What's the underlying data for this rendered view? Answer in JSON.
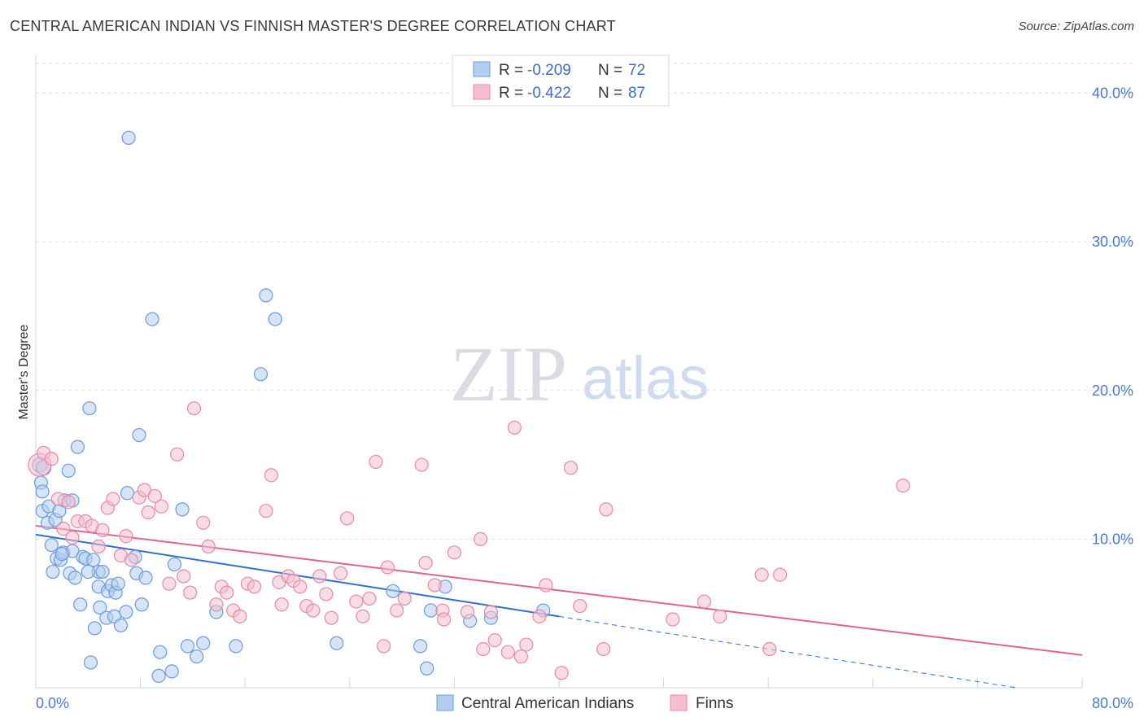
{
  "header": {
    "title": "CENTRAL AMERICAN INDIAN VS FINNISH MASTER'S DEGREE CORRELATION CHART",
    "source": "Source: ZipAtlas.com"
  },
  "colors": {
    "blue": "#6b9bdc",
    "blue_fill": "#b3cdf1",
    "blue_line": "#2f6fcf",
    "pink": "#e68aa8",
    "pink_fill": "#f5bfd0",
    "pink_line": "#e0628e",
    "grid": "#dde2ea",
    "tick": "#4a7cc9"
  },
  "chart_data": {
    "type": "scatter",
    "title": "CENTRAL AMERICAN INDIAN VS FINNISH MASTER'S DEGREE CORRELATION CHART",
    "xlabel": "",
    "ylabel": "Master's Degree",
    "xlim": [
      0,
      80
    ],
    "ylim": [
      0,
      42
    ],
    "x_ticks_labels": [
      "0.0%",
      "80.0%"
    ],
    "y_ticks": [
      10,
      20,
      30,
      40
    ],
    "y_tick_labels": [
      "10.0%",
      "20.0%",
      "30.0%",
      "40.0%"
    ],
    "grid": true,
    "legend_position": "top-center",
    "watermark": "ZIPatlas",
    "legend": {
      "r_label": "R =",
      "n_label": "N =",
      "entries": [
        {
          "r": "-0.209",
          "n": "72"
        },
        {
          "r": "-0.422",
          "n": "87"
        }
      ]
    },
    "series": [
      {
        "name": "Central American Indians",
        "trend": {
          "x0": 0,
          "y0": 10.3,
          "x1": 40,
          "y1": 4.8,
          "dashed_to_x": 75,
          "dashed_y_end": 0.0
        },
        "points": [
          [
            0.4,
            13.8
          ],
          [
            0.5,
            13.2
          ],
          [
            0.5,
            11.9
          ],
          [
            0.9,
            11.1
          ],
          [
            1.0,
            12.2
          ],
          [
            1.2,
            9.6
          ],
          [
            1.3,
            7.8
          ],
          [
            1.5,
            11.3
          ],
          [
            1.6,
            8.7
          ],
          [
            1.8,
            11.9
          ],
          [
            1.9,
            8.6
          ],
          [
            2.1,
            9.1
          ],
          [
            2.2,
            12.6
          ],
          [
            2.5,
            14.6
          ],
          [
            2.6,
            7.7
          ],
          [
            2.8,
            9.2
          ],
          [
            2.8,
            12.6
          ],
          [
            3.0,
            7.4
          ],
          [
            3.2,
            16.2
          ],
          [
            3.4,
            5.6
          ],
          [
            3.6,
            8.8
          ],
          [
            3.8,
            8.7
          ],
          [
            4.1,
            18.8
          ],
          [
            4.2,
            1.7
          ],
          [
            4.4,
            8.6
          ],
          [
            4.5,
            4.0
          ],
          [
            4.8,
            7.8
          ],
          [
            4.8,
            6.8
          ],
          [
            4.9,
            5.4
          ],
          [
            5.1,
            7.8
          ],
          [
            5.4,
            4.7
          ],
          [
            5.5,
            6.5
          ],
          [
            5.8,
            6.9
          ],
          [
            6.0,
            4.8
          ],
          [
            6.1,
            6.4
          ],
          [
            6.3,
            7.0
          ],
          [
            6.5,
            4.2
          ],
          [
            6.9,
            5.1
          ],
          [
            7.0,
            13.1
          ],
          [
            7.1,
            37.0
          ],
          [
            7.6,
            8.8
          ],
          [
            7.7,
            7.7
          ],
          [
            7.9,
            17.0
          ],
          [
            8.1,
            5.6
          ],
          [
            8.4,
            7.4
          ],
          [
            8.9,
            24.8
          ],
          [
            9.4,
            0.8
          ],
          [
            9.5,
            2.4
          ],
          [
            10.4,
            1.1
          ],
          [
            10.6,
            8.3
          ],
          [
            11.2,
            12.0
          ],
          [
            11.6,
            2.8
          ],
          [
            12.3,
            2.1
          ],
          [
            12.8,
            3.0
          ],
          [
            13.8,
            5.1
          ],
          [
            15.3,
            2.8
          ],
          [
            17.2,
            21.1
          ],
          [
            17.6,
            26.4
          ],
          [
            18.3,
            24.8
          ],
          [
            23.0,
            3.0
          ],
          [
            27.3,
            6.5
          ],
          [
            29.4,
            2.8
          ],
          [
            29.9,
            1.3
          ],
          [
            30.2,
            5.2
          ],
          [
            31.3,
            6.8
          ],
          [
            33.2,
            4.5
          ],
          [
            34.8,
            4.7
          ],
          [
            38.8,
            5.2
          ],
          [
            0.3,
            15.0
          ],
          [
            0.6,
            14.8
          ],
          [
            4.0,
            7.8
          ],
          [
            2.0,
            9.0
          ]
        ]
      },
      {
        "name": "Finns",
        "trend": {
          "x0": 0,
          "y0": 10.9,
          "x1": 80,
          "y1": 2.2
        },
        "points": [
          [
            0.3,
            15.0
          ],
          [
            0.6,
            15.8
          ],
          [
            1.2,
            15.4
          ],
          [
            1.7,
            12.7
          ],
          [
            2.1,
            10.7
          ],
          [
            2.5,
            12.5
          ],
          [
            2.8,
            10.1
          ],
          [
            3.2,
            11.2
          ],
          [
            3.8,
            11.2
          ],
          [
            4.3,
            10.9
          ],
          [
            4.8,
            9.5
          ],
          [
            5.1,
            10.6
          ],
          [
            5.5,
            12.1
          ],
          [
            5.9,
            12.7
          ],
          [
            6.5,
            8.9
          ],
          [
            6.9,
            10.2
          ],
          [
            7.3,
            8.6
          ],
          [
            7.9,
            12.8
          ],
          [
            8.3,
            13.3
          ],
          [
            8.6,
            11.8
          ],
          [
            9.1,
            12.9
          ],
          [
            9.6,
            12.2
          ],
          [
            10.2,
            7.0
          ],
          [
            10.8,
            15.7
          ],
          [
            11.3,
            7.5
          ],
          [
            11.8,
            6.4
          ],
          [
            12.1,
            18.8
          ],
          [
            12.8,
            11.1
          ],
          [
            13.2,
            9.5
          ],
          [
            13.8,
            5.6
          ],
          [
            14.2,
            6.8
          ],
          [
            14.6,
            6.4
          ],
          [
            15.1,
            5.2
          ],
          [
            15.6,
            4.8
          ],
          [
            16.2,
            7.0
          ],
          [
            16.7,
            6.8
          ],
          [
            17.6,
            11.9
          ],
          [
            18.0,
            14.3
          ],
          [
            18.6,
            7.1
          ],
          [
            18.8,
            5.6
          ],
          [
            19.3,
            7.5
          ],
          [
            19.7,
            7.2
          ],
          [
            20.2,
            6.8
          ],
          [
            20.7,
            5.5
          ],
          [
            21.2,
            5.2
          ],
          [
            21.7,
            7.5
          ],
          [
            22.2,
            6.3
          ],
          [
            22.6,
            4.7
          ],
          [
            23.3,
            7.7
          ],
          [
            23.8,
            11.4
          ],
          [
            24.5,
            5.8
          ],
          [
            25.0,
            4.8
          ],
          [
            25.5,
            6.0
          ],
          [
            26.0,
            15.2
          ],
          [
            26.6,
            2.8
          ],
          [
            26.9,
            8.1
          ],
          [
            27.6,
            5.2
          ],
          [
            28.2,
            6.0
          ],
          [
            29.5,
            15.0
          ],
          [
            29.8,
            8.4
          ],
          [
            30.5,
            6.9
          ],
          [
            31.1,
            5.2
          ],
          [
            31.2,
            4.6
          ],
          [
            32.0,
            9.1
          ],
          [
            33.0,
            5.1
          ],
          [
            34.0,
            10.0
          ],
          [
            34.2,
            2.6
          ],
          [
            34.8,
            5.1
          ],
          [
            35.1,
            3.2
          ],
          [
            36.1,
            2.4
          ],
          [
            36.6,
            17.5
          ],
          [
            37.1,
            2.1
          ],
          [
            37.5,
            2.9
          ],
          [
            38.5,
            4.8
          ],
          [
            39.0,
            6.9
          ],
          [
            40.2,
            1.0
          ],
          [
            40.9,
            14.8
          ],
          [
            41.6,
            5.5
          ],
          [
            43.4,
            2.6
          ],
          [
            43.6,
            12.0
          ],
          [
            48.7,
            4.6
          ],
          [
            51.1,
            5.8
          ],
          [
            52.3,
            4.8
          ],
          [
            55.5,
            7.6
          ],
          [
            56.1,
            2.6
          ],
          [
            56.9,
            7.6
          ],
          [
            66.3,
            13.6
          ]
        ]
      }
    ]
  },
  "bottom_legend": {
    "items": [
      "Central American Indians",
      "Finns"
    ]
  }
}
